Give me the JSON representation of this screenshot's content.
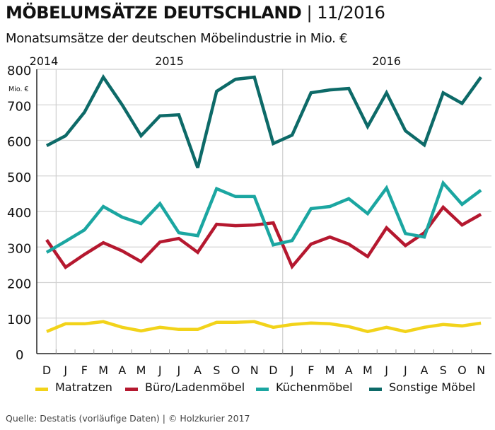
{
  "header": {
    "title": "MÖBELUMSÄTZE DEUTSCHLAND",
    "title_separator": "|",
    "date": "11/2016",
    "subtitle": "Monatsumsätze der deutschen Möbelindustrie in Mio. €"
  },
  "footer": {
    "source": "Quelle: Destatis (vorläufige Daten) | © Holzkurier 2017"
  },
  "chart_data": {
    "type": "line",
    "title": "MÖBELUMSÄTZE DEUTSCHLAND | 11/2016",
    "subtitle": "Monatsumsätze der deutschen Möbelindustrie in Mio. €",
    "ylabel": "Mio. €",
    "xlabel": "",
    "ylim": [
      0,
      800
    ],
    "yticks": [
      0,
      100,
      200,
      300,
      400,
      500,
      600,
      700,
      800
    ],
    "grid": true,
    "legend": "bottom",
    "year_labels": [
      {
        "label": "2014",
        "starts_at_index": 0
      },
      {
        "label": "2015",
        "starts_at_index": 1
      },
      {
        "label": "2016",
        "starts_at_index": 13
      }
    ],
    "categories": [
      "D",
      "J",
      "F",
      "M",
      "A",
      "M",
      "J",
      "J",
      "A",
      "S",
      "O",
      "N",
      "D",
      "J",
      "F",
      "M",
      "A",
      "M",
      "J",
      "J",
      "A",
      "S",
      "O",
      "N"
    ],
    "series": [
      {
        "name": "Matratzen",
        "color": "#f2d31a",
        "values": [
          62,
          84,
          84,
          90,
          74,
          64,
          74,
          68,
          68,
          88,
          88,
          90,
          74,
          82,
          86,
          84,
          76,
          62,
          74,
          62,
          74,
          82,
          78,
          86
        ]
      },
      {
        "name": "Büro/Ladenmöbel",
        "color": "#b5182f",
        "values": [
          320,
          243,
          279,
          312,
          289,
          259,
          314,
          324,
          285,
          364,
          360,
          362,
          368,
          245,
          308,
          328,
          308,
          273,
          354,
          304,
          340,
          412,
          362,
          392
        ]
      },
      {
        "name": "Küchenmöbel",
        "color": "#1ba6a1",
        "values": [
          285,
          316,
          348,
          414,
          384,
          366,
          422,
          340,
          332,
          464,
          442,
          442,
          306,
          318,
          408,
          414,
          436,
          394,
          466,
          338,
          328,
          480,
          420,
          460
        ]
      },
      {
        "name": "Sonstige Möbel",
        "color": "#0d6a68",
        "values": [
          585,
          613,
          679,
          778,
          700,
          613,
          669,
          672,
          523,
          738,
          772,
          778,
          591,
          615,
          734,
          742,
          746,
          639,
          734,
          627,
          587,
          734,
          704,
          778
        ]
      }
    ]
  }
}
